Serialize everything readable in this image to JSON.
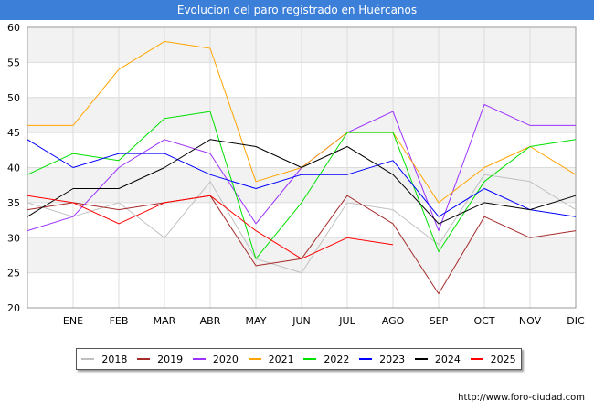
{
  "chart_data": {
    "type": "line",
    "title": "Evolucion del paro registrado en Huércanos",
    "categories": [
      "",
      "ENE",
      "FEB",
      "MAR",
      "ABR",
      "MAY",
      "JUN",
      "JUL",
      "AGO",
      "SEP",
      "OCT",
      "NOV",
      "DIC"
    ],
    "ylim": [
      20,
      60
    ],
    "yticks": [
      20,
      25,
      30,
      35,
      40,
      45,
      50,
      55,
      60
    ],
    "grid": true,
    "legend_position": "bottom",
    "series": [
      {
        "name": "2018",
        "color": "#c0c0c0",
        "values": [
          35,
          33,
          35,
          30,
          38,
          27,
          25,
          35,
          34,
          29,
          39,
          38,
          34
        ]
      },
      {
        "name": "2019",
        "color": "#a52a2a",
        "values": [
          34,
          35,
          34,
          35,
          36,
          26,
          27,
          36,
          32,
          22,
          33,
          30,
          31
        ]
      },
      {
        "name": "2020",
        "color": "#9b30ff",
        "values": [
          31,
          33,
          40,
          44,
          42,
          32,
          40,
          45,
          48,
          31,
          49,
          46,
          46
        ]
      },
      {
        "name": "2021",
        "color": "#ffa500",
        "values": [
          46,
          46,
          54,
          58,
          57,
          38,
          40,
          45,
          45,
          35,
          40,
          43,
          39
        ]
      },
      {
        "name": "2022",
        "color": "#00e000",
        "values": [
          39,
          42,
          41,
          47,
          48,
          27,
          35,
          45,
          45,
          28,
          38,
          43,
          44
        ]
      },
      {
        "name": "2023",
        "color": "#0000ff",
        "values": [
          44,
          40,
          42,
          42,
          39,
          37,
          39,
          39,
          41,
          33,
          37,
          34,
          33
        ]
      },
      {
        "name": "2024",
        "color": "#000000",
        "values": [
          33,
          37,
          37,
          40,
          44,
          43,
          40,
          43,
          39,
          32,
          35,
          34,
          36
        ]
      },
      {
        "name": "2025",
        "color": "#ff0000",
        "values": [
          36,
          35,
          32,
          35,
          36,
          31,
          27,
          30,
          29,
          null,
          null,
          null,
          null
        ]
      }
    ]
  },
  "footer": {
    "source": "http://www.foro-ciudad.com"
  }
}
